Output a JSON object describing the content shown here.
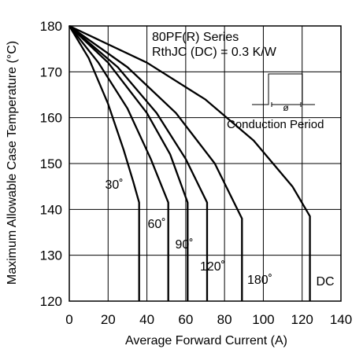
{
  "chart_data": {
    "type": "line",
    "title": "",
    "xlabel": "Average Forward Current (A)",
    "ylabel": "Maximum Allowable Case Temperature (°C)",
    "xlim": [
      0,
      140
    ],
    "ylim": [
      120,
      180
    ],
    "xticks": [
      0,
      20,
      40,
      60,
      80,
      100,
      120,
      140
    ],
    "yticks": [
      120,
      130,
      140,
      150,
      160,
      170,
      180
    ],
    "grid": true,
    "annotations": {
      "series_name": "80PF(R) Series",
      "rth": "RthJC  (DC) = 0.3 K/W",
      "conduction_label": "Conduction Period",
      "phi": "ø"
    },
    "series": [
      {
        "label": "30˚",
        "x": [
          0,
          10,
          20,
          28,
          33,
          36,
          36
        ],
        "y": [
          180,
          173,
          163,
          153,
          146,
          141.5,
          120
        ]
      },
      {
        "label": "60˚",
        "x": [
          0,
          15,
          30,
          42,
          51,
          51
        ],
        "y": [
          180,
          172,
          162,
          151,
          141.5,
          120
        ]
      },
      {
        "label": "90˚",
        "x": [
          0,
          20,
          40,
          52,
          61,
          61
        ],
        "y": [
          180,
          172,
          161,
          152,
          141.5,
          120
        ]
      },
      {
        "label": "120˚",
        "x": [
          0,
          25,
          45,
          60,
          71,
          71
        ],
        "y": [
          180,
          171,
          161,
          151,
          141.5,
          120
        ]
      },
      {
        "label": "180˚",
        "x": [
          0,
          30,
          55,
          75,
          89,
          89
        ],
        "y": [
          180,
          171,
          161,
          150,
          138,
          120
        ]
      },
      {
        "label": "DC",
        "x": [
          0,
          40,
          70,
          95,
          115,
          124,
          124
        ],
        "y": [
          180,
          172,
          164,
          155,
          145,
          138.5,
          120
        ]
      }
    ]
  }
}
